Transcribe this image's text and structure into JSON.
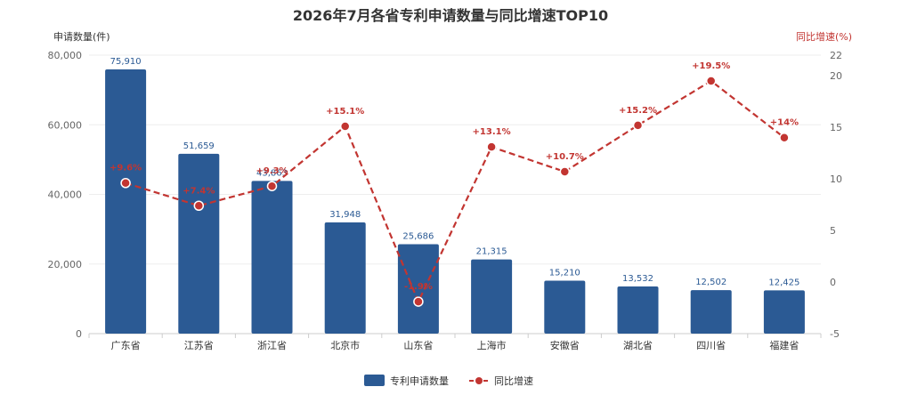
{
  "chart_data": {
    "type": "bar",
    "title": "2026年7月各省专利申请数量与同比增速TOP10",
    "categories": [
      "广东省",
      "江苏省",
      "浙江省",
      "北京市",
      "山东省",
      "上海市",
      "安徽省",
      "湖北省",
      "四川省",
      "福建省"
    ],
    "series": [
      {
        "name": "专利申请数量",
        "type": "bar",
        "axis": "left",
        "values": [
          75910,
          51659,
          43863,
          31948,
          25686,
          21315,
          15210,
          13532,
          12502,
          12425
        ],
        "labels": [
          "75,910",
          "51,659",
          "43,863",
          "31,948",
          "25,686",
          "21,315",
          "15,210",
          "13,532",
          "12,502",
          "12,425"
        ],
        "color": "#2b5a94"
      },
      {
        "name": "同比增速",
        "type": "line",
        "axis": "right",
        "values": [
          9.6,
          7.4,
          9.3,
          15.1,
          -1.9,
          13.1,
          10.7,
          15.2,
          19.5,
          14.0
        ],
        "labels": [
          "+9.6%",
          "+7.4%",
          "+9.3%",
          "+15.1%",
          "-1.9%",
          "+13.1%",
          "+10.7%",
          "+15.2%",
          "+19.5%",
          "+14%"
        ],
        "color": "#c23531",
        "dashed": true
      }
    ],
    "ylabel_left": "申请数量(件)",
    "ylabel_right": "同比增速(%)",
    "ylim_left": [
      0,
      80000
    ],
    "ylim_right": [
      -5,
      22
    ],
    "yticks_left": [
      "0",
      "20,000",
      "40,000",
      "60,000",
      "80,000"
    ],
    "yticks_right": [
      "-5",
      "0",
      "5",
      "10",
      "15",
      "20",
      "22"
    ],
    "legend": [
      "专利申请数量",
      "同比增速"
    ],
    "legend_position": "bottom",
    "grid": true
  }
}
